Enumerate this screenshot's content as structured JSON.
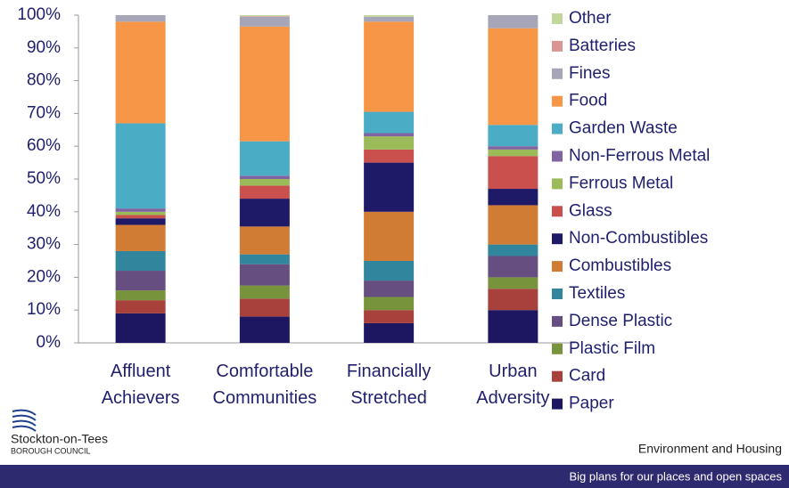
{
  "chart_data": {
    "type": "stacked_bar",
    "categories": [
      "Affluent Achievers",
      "Comfortable Communities",
      "Financially Stretched",
      "Urban Adversity"
    ],
    "series": [
      {
        "name": "Paper",
        "color": "#1c1760",
        "values": [
          9,
          8,
          6,
          10
        ]
      },
      {
        "name": "Card",
        "color": "#a8403c",
        "values": [
          4,
          5.5,
          4,
          6.5
        ]
      },
      {
        "name": "Plastic Film",
        "color": "#77933c",
        "values": [
          3,
          4,
          4,
          3.5
        ]
      },
      {
        "name": "Dense Plastic",
        "color": "#664f80",
        "values": [
          6,
          6.5,
          5,
          6.5
        ]
      },
      {
        "name": "Textiles",
        "color": "#31859c",
        "values": [
          6,
          3,
          6,
          3.5
        ]
      },
      {
        "name": "Combustibles",
        "color": "#d07c34",
        "values": [
          8,
          8.5,
          15,
          12
        ]
      },
      {
        "name": "Non-Combustibles",
        "color": "#1f1a68",
        "values": [
          2,
          8.5,
          15,
          5
        ]
      },
      {
        "name": "Glass",
        "color": "#c9504c",
        "values": [
          1,
          4,
          4,
          10
        ]
      },
      {
        "name": "Ferrous Metal",
        "color": "#9bbb59",
        "values": [
          1,
          2,
          4,
          2
        ]
      },
      {
        "name": "Non-Ferrous Metal",
        "color": "#8064a2",
        "values": [
          1,
          1,
          1,
          1
        ]
      },
      {
        "name": "Garden Waste",
        "color": "#4bacc6",
        "values": [
          26,
          10.5,
          6.5,
          6.5
        ]
      },
      {
        "name": "Food",
        "color": "#f79646",
        "values": [
          31,
          35,
          27.5,
          29.5
        ]
      },
      {
        "name": "Fines",
        "color": "#a6a6b8",
        "values": [
          2,
          3,
          1.5,
          4
        ]
      },
      {
        "name": "Batteries",
        "color": "#d99694",
        "values": [
          0,
          0.2,
          0,
          0
        ]
      },
      {
        "name": "Other",
        "color": "#c3d69b",
        "values": [
          0,
          0.3,
          0.5,
          0
        ]
      }
    ],
    "ylim": [
      0,
      100
    ],
    "yticks": [
      {
        "value": 0,
        "label": "0%"
      },
      {
        "value": 10,
        "label": "10%"
      },
      {
        "value": 20,
        "label": "20%"
      },
      {
        "value": 30,
        "label": "30%"
      },
      {
        "value": 40,
        "label": "40%"
      },
      {
        "value": 50,
        "label": "50%"
      },
      {
        "value": 60,
        "label": "60%"
      },
      {
        "value": 70,
        "label": "70%"
      },
      {
        "value": 80,
        "label": "80%"
      },
      {
        "value": 90,
        "label": "90%"
      },
      {
        "value": 100,
        "label": "100%"
      }
    ],
    "legend": "right"
  },
  "footer": {
    "council": "Stockton-on-Tees",
    "council_sub": "BOROUGH COUNCIL",
    "department": "Environment and Housing",
    "slogan": "Big plans for our places and open spaces"
  }
}
